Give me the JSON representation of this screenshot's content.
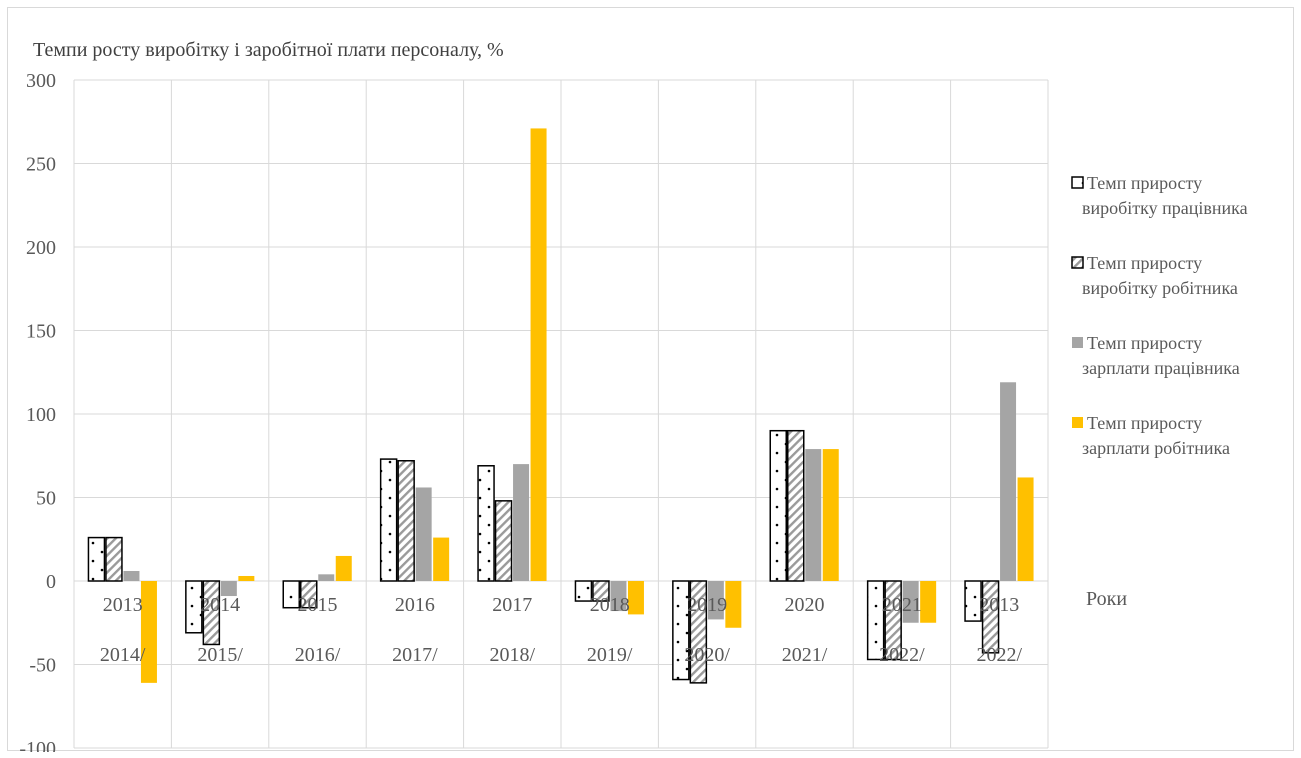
{
  "chart_data": {
    "type": "bar",
    "title": "Темпи росту виробітку і заробітної плати персоналу,  %",
    "ylabel": "Темпи росту виробітку і заробітної плати персоналу,  %",
    "xlabel": "Роки",
    "ylim": [
      -100,
      300
    ],
    "yticks": [
      300,
      250,
      200,
      150,
      100,
      50,
      0,
      -50,
      -100
    ],
    "grid": true,
    "legend_position": "right",
    "categories": [
      {
        "line1": "2013",
        "line2": "2014/"
      },
      {
        "line1": "2014",
        "line2": "2015/"
      },
      {
        "line1": "2015",
        "line2": "2016/"
      },
      {
        "line1": "2016",
        "line2": "2017/"
      },
      {
        "line1": "2017",
        "line2": "2018/"
      },
      {
        "line1": "2018",
        "line2": "2019/"
      },
      {
        "line1": "2019",
        "line2": "2020/"
      },
      {
        "line1": "2020",
        "line2": "2021/"
      },
      {
        "line1": "2021",
        "line2": "2022/"
      },
      {
        "line1": "2013",
        "line2": "2022/"
      }
    ],
    "series": [
      {
        "name": "Темп приросту виробітку працівника",
        "legend_lines": [
          "Темп приросту",
          "виробітку працівника"
        ],
        "pattern": "dots",
        "color": "#ffffff",
        "values": [
          26,
          -31,
          -16,
          73,
          69,
          -12,
          -59,
          90,
          -47,
          -24
        ]
      },
      {
        "name": "Темп приросту виробітку робітника",
        "legend_lines": [
          "Темп приросту",
          "виробітку робітника"
        ],
        "pattern": "hatch",
        "color": "#ffffff",
        "values": [
          26,
          -38,
          -16,
          72,
          48,
          -12,
          -61,
          90,
          -47,
          -43
        ]
      },
      {
        "name": "Темп приросту зарплати працівника",
        "legend_lines": [
          "Темп приросту",
          "зарплати працівника"
        ],
        "pattern": "solid",
        "color": "#a5a5a5",
        "values": [
          6,
          -9,
          4,
          56,
          70,
          -18,
          -23,
          79,
          -25,
          119
        ]
      },
      {
        "name": "Темп приросту зарплати робітника",
        "legend_lines": [
          "Темп приросту",
          "зарплати робітника"
        ],
        "pattern": "solid",
        "color": "#ffc000",
        "values": [
          -61,
          3,
          15,
          26,
          271,
          -20,
          -28,
          79,
          -25,
          62
        ]
      }
    ]
  }
}
